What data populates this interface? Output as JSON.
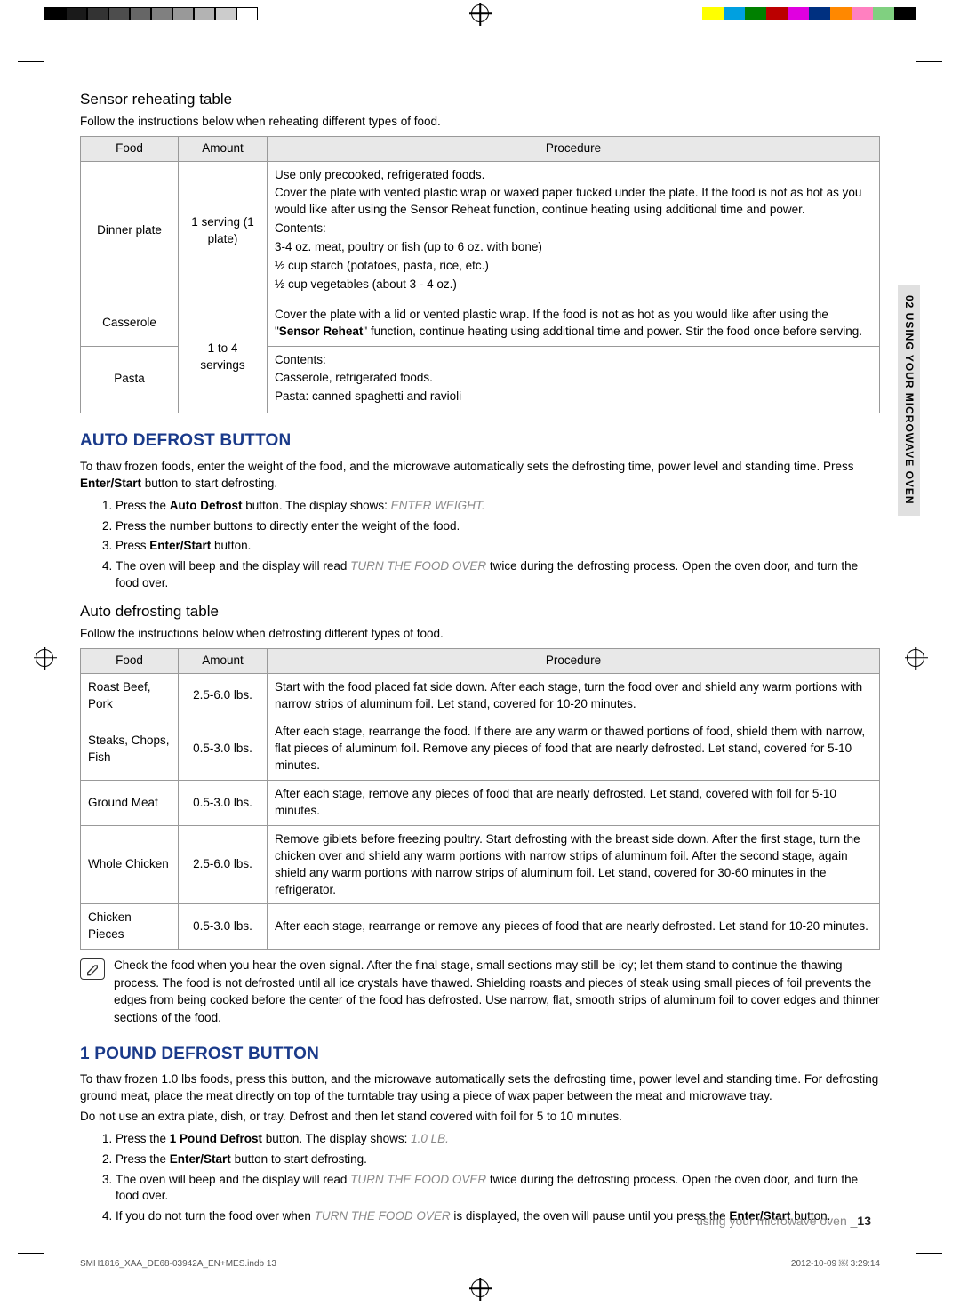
{
  "sideTab": "02 USING YOUR MICROWAVE OVEN",
  "section1": {
    "heading": "Sensor reheating table",
    "intro": "Follow the instructions below when reheating different types of food.",
    "columns": [
      "Food",
      "Amount",
      "Procedure"
    ],
    "rows": {
      "r1": {
        "food": "Dinner plate",
        "amount": "1 serving (1 plate)",
        "procTop": "Use only precooked, refrigerated foods.",
        "proc2": "Cover the plate with vented plastic wrap or waxed paper tucked under the plate. If the food is not as hot as you would like after using the Sensor Reheat function, continue heating using additional time and power.",
        "contentsLabel": "Contents:",
        "c1": "3-4 oz. meat, poultry or fish (up to 6 oz. with bone)",
        "c2": "½ cup starch (potatoes, pasta, rice, etc.)",
        "c3": "½ cup vegetables (about 3 - 4 oz.)"
      },
      "r2": {
        "food": "Casserole",
        "amountShared": "1 to 4 servings",
        "proc": "Cover the plate with a lid or vented plastic wrap. If the food is not as hot as you would like after using the \"",
        "procBold": "Sensor Reheat",
        "procTail": "\" function, continue heating using additional time and power. Stir the food once before serving."
      },
      "r3": {
        "food": "Pasta",
        "contentsLabel": "Contents:",
        "c1": "Casserole, refrigerated foods.",
        "c2": "Pasta: canned spaghetti and ravioli"
      }
    }
  },
  "section2": {
    "heading": "AUTO DEFROST BUTTON",
    "intro1": "To thaw frozen foods, enter the weight of the food, and the microwave automatically sets the defrosting time, power level and standing time. Press ",
    "introBold": "Enter/Start",
    "intro2": " button to start defrosting.",
    "steps": {
      "s1a": "Press the ",
      "s1b": "Auto Defrost",
      "s1c": " button. The display shows: ",
      "s1d": "ENTER WEIGHT.",
      "s2": "Press the number buttons to directly enter the weight of the food.",
      "s3a": "Press ",
      "s3b": "Enter/Start",
      "s3c": " button.",
      "s4a": "The oven will beep and the display will read ",
      "s4b": "TURN THE FOOD OVER",
      "s4c": " twice during the defrosting process. Open the oven door, and turn the food over."
    }
  },
  "section3": {
    "heading": "Auto defrosting table",
    "intro": "Follow the instructions below when defrosting different types of food.",
    "columns": [
      "Food",
      "Amount",
      "Procedure"
    ],
    "rows": {
      "r1": {
        "food": "Roast Beef, Pork",
        "amount": "2.5-6.0 lbs.",
        "proc": "Start with the food placed fat side down. After each stage, turn the food over and shield any warm portions with narrow strips of aluminum foil. Let stand, covered for 10-20 minutes."
      },
      "r2": {
        "food": "Steaks, Chops, Fish",
        "amount": "0.5-3.0 lbs.",
        "proc": "After each stage, rearrange the food. If there are any warm or thawed portions of food, shield them with narrow, flat pieces of aluminum foil. Remove any pieces of food that are nearly defrosted. Let stand, covered for 5-10 minutes."
      },
      "r3": {
        "food": "Ground Meat",
        "amount": "0.5-3.0 lbs.",
        "proc": "After each stage, remove any pieces of food that are nearly defrosted. Let stand, covered with foil for 5-10 minutes."
      },
      "r4": {
        "food": "Whole Chicken",
        "amount": "2.5-6.0 lbs.",
        "proc": "Remove giblets before freezing poultry. Start defrosting with the breast side down. After the first stage, turn the chicken over and shield any warm portions with narrow strips of aluminum foil. After the second stage, again shield any warm portions with narrow strips of aluminum foil. Let stand, covered for 30-60 minutes in the refrigerator."
      },
      "r5": {
        "food": "Chicken Pieces",
        "amount": "0.5-3.0 lbs.",
        "proc": "After each stage, rearrange or remove any pieces of food that are nearly defrosted. Let stand for 10-20 minutes."
      }
    },
    "note": "Check the food when you hear the oven signal. After the final stage, small sections may still be icy; let them stand to continue the thawing process. The food is not defrosted until all ice crystals have thawed. Shielding roasts and pieces of steak using small pieces of foil prevents the edges from being cooked before the center of the food has defrosted. Use narrow, flat, smooth strips of aluminum foil to cover edges and thinner sections of the food."
  },
  "section4": {
    "heading": "1 POUND DEFROST BUTTON",
    "intro": "To thaw frozen 1.0 lbs foods, press this button, and the microwave automatically sets the defrosting time, power level and standing time. For defrosting ground meat, place the meat directly on top of the turntable tray using a piece of wax paper between the meat and microwave tray.",
    "intro2": "Do not use an extra plate, dish, or tray. Defrost and then let stand covered with foil for 5 to 10 minutes.",
    "steps": {
      "s1a": "Press the ",
      "s1b": "1 Pound Defrost",
      "s1c": " button. The display shows: ",
      "s1d": "1.0 LB.",
      "s2a": "Press the ",
      "s2b": "Enter/Start",
      "s2c": " button to start defrosting.",
      "s3a": "The oven will beep and the display will read ",
      "s3b": "TURN THE FOOD OVER",
      "s3c": " twice during the defrosting process. Open the oven door, and turn the food over.",
      "s4a": "If you do not turn the food over when ",
      "s4b": "TURN THE FOOD OVER",
      "s4c": " is displayed, the oven will pause until you press the ",
      "s4d": "Enter/Start",
      "s4e": " button."
    }
  },
  "footer": {
    "label": "using your microwave oven _",
    "page": "13",
    "file": "SMH1816_XAA_DE68-03942A_EN+MES.indb   13",
    "datetime": "2012-10-09   ￼ 3:29:14"
  },
  "grayscale": [
    "#000000",
    "#1a1a1a",
    "#333333",
    "#4d4d4d",
    "#666666",
    "#808080",
    "#999999",
    "#b3b3b3",
    "#cccccc",
    "#ffffff"
  ],
  "colorBar": [
    "#ffff00",
    "#00a0e0",
    "#008000",
    "#bb0000",
    "#e000e0",
    "#003080",
    "#ff8800",
    "#ff80c0",
    "#80d080",
    "#000000"
  ]
}
